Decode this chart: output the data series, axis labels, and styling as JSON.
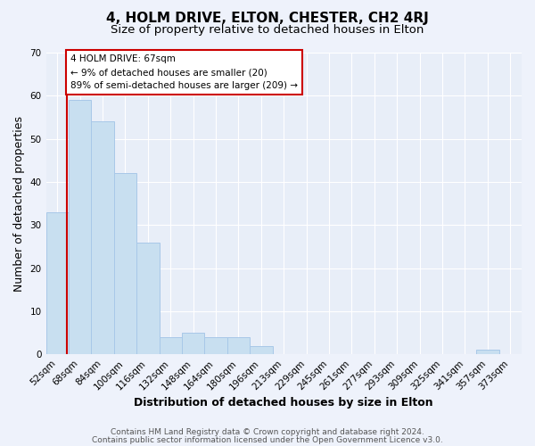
{
  "title": "4, HOLM DRIVE, ELTON, CHESTER, CH2 4RJ",
  "subtitle": "Size of property relative to detached houses in Elton",
  "xlabel": "Distribution of detached houses by size in Elton",
  "ylabel": "Number of detached properties",
  "bar_labels": [
    "52sqm",
    "68sqm",
    "84sqm",
    "100sqm",
    "116sqm",
    "132sqm",
    "148sqm",
    "164sqm",
    "180sqm",
    "196sqm",
    "213sqm",
    "229sqm",
    "245sqm",
    "261sqm",
    "277sqm",
    "293sqm",
    "309sqm",
    "325sqm",
    "341sqm",
    "357sqm",
    "373sqm"
  ],
  "bar_heights": [
    33,
    59,
    54,
    42,
    26,
    4,
    5,
    4,
    4,
    2,
    0,
    0,
    0,
    0,
    0,
    0,
    0,
    0,
    0,
    1,
    0
  ],
  "bar_color": "#c8dff0",
  "bar_edge_color": "#a8c8e8",
  "ylim": [
    0,
    70
  ],
  "annotation_title": "4 HOLM DRIVE: 67sqm",
  "annotation_line1": "← 9% of detached houses are smaller (20)",
  "annotation_line2": "89% of semi-detached houses are larger (209) →",
  "annotation_box_color": "#ffffff",
  "annotation_box_edge": "#cc0000",
  "footer_line1": "Contains HM Land Registry data © Crown copyright and database right 2024.",
  "footer_line2": "Contains public sector information licensed under the Open Government Licence v3.0.",
  "background_color": "#eef2fb",
  "plot_bg_color": "#e8eef8",
  "grid_color": "#ffffff",
  "title_fontsize": 11,
  "subtitle_fontsize": 9.5,
  "axis_label_fontsize": 9,
  "tick_fontsize": 7.5,
  "footer_fontsize": 6.5,
  "yticks": [
    0,
    10,
    20,
    30,
    40,
    50,
    60,
    70
  ]
}
